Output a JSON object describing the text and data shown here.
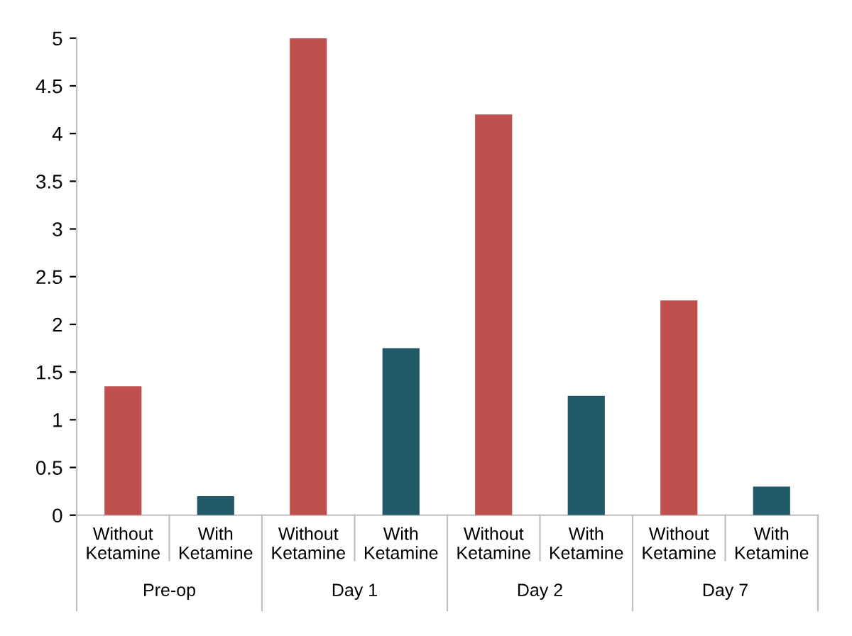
{
  "chart_data": {
    "type": "bar",
    "categories": [
      "Without\nKetamine",
      "With\nKetamine",
      "Without\nKetamine",
      "With\nKetamine",
      "Without\nKetamine",
      "With\nKetamine",
      "Without\nKetamine",
      "With\nKetamine"
    ],
    "values": [
      1.35,
      0.2,
      5,
      1.75,
      4.2,
      1.25,
      2.25,
      0.3
    ],
    "colors": [
      "#c0504d",
      "#215968",
      "#c0504d",
      "#215968",
      "#c0504d",
      "#215968",
      "#c0504d",
      "#215968"
    ],
    "annotations": [
      "Pre-op",
      "Day 1",
      "Day 2",
      "Day 7"
    ],
    "ylim": [
      0,
      5
    ],
    "yticks": [
      0,
      0.5,
      1,
      1.5,
      2,
      2.5,
      3,
      3.5,
      4,
      4.5,
      5
    ],
    "grid": false
  }
}
